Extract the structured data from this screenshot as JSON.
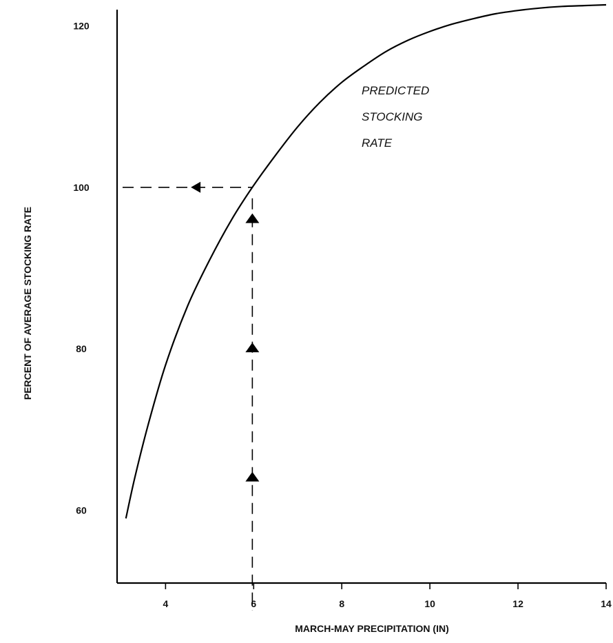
{
  "chart_data": {
    "type": "line",
    "title": "",
    "xlabel": "MARCH-MAY   PRECIPITATION   (IN)",
    "ylabel": "PERCENT OF AVERAGE STOCKING RATE",
    "xlim": [
      2.9,
      14
    ],
    "ylim": [
      51,
      122
    ],
    "x_ticks": [
      4,
      6,
      8,
      10,
      12,
      14
    ],
    "y_ticks": [
      60,
      80,
      100,
      120
    ],
    "grid": false,
    "line_color": "#000000",
    "series": [
      {
        "name": "PREDICTED STOCKING RATE",
        "x": [
          3.1,
          3.3,
          3.6,
          4.0,
          4.5,
          5.0,
          5.5,
          5.97,
          6.5,
          7.0,
          7.5,
          8.0,
          8.5,
          9.0,
          9.5,
          10.0,
          10.5,
          11.0,
          11.5,
          12.0,
          12.5,
          13.0,
          13.5,
          14.0
        ],
        "y": [
          59.0,
          64.0,
          70.5,
          78.0,
          85.3,
          91.0,
          96.0,
          100.0,
          104.0,
          107.5,
          110.5,
          113.0,
          115.0,
          116.8,
          118.2,
          119.3,
          120.2,
          120.9,
          121.5,
          121.9,
          122.2,
          122.4,
          122.5,
          122.6
        ]
      }
    ],
    "reference": {
      "x": 5.97,
      "y": 100,
      "upward_arrow_y": [
        64,
        80,
        96
      ],
      "leftward_arrow_x": 4.7
    },
    "annotations": [
      {
        "lines": [
          "PREDICTED",
          "STOCKING",
          "RATE"
        ],
        "x": 8.45,
        "y": 111.5
      }
    ]
  }
}
